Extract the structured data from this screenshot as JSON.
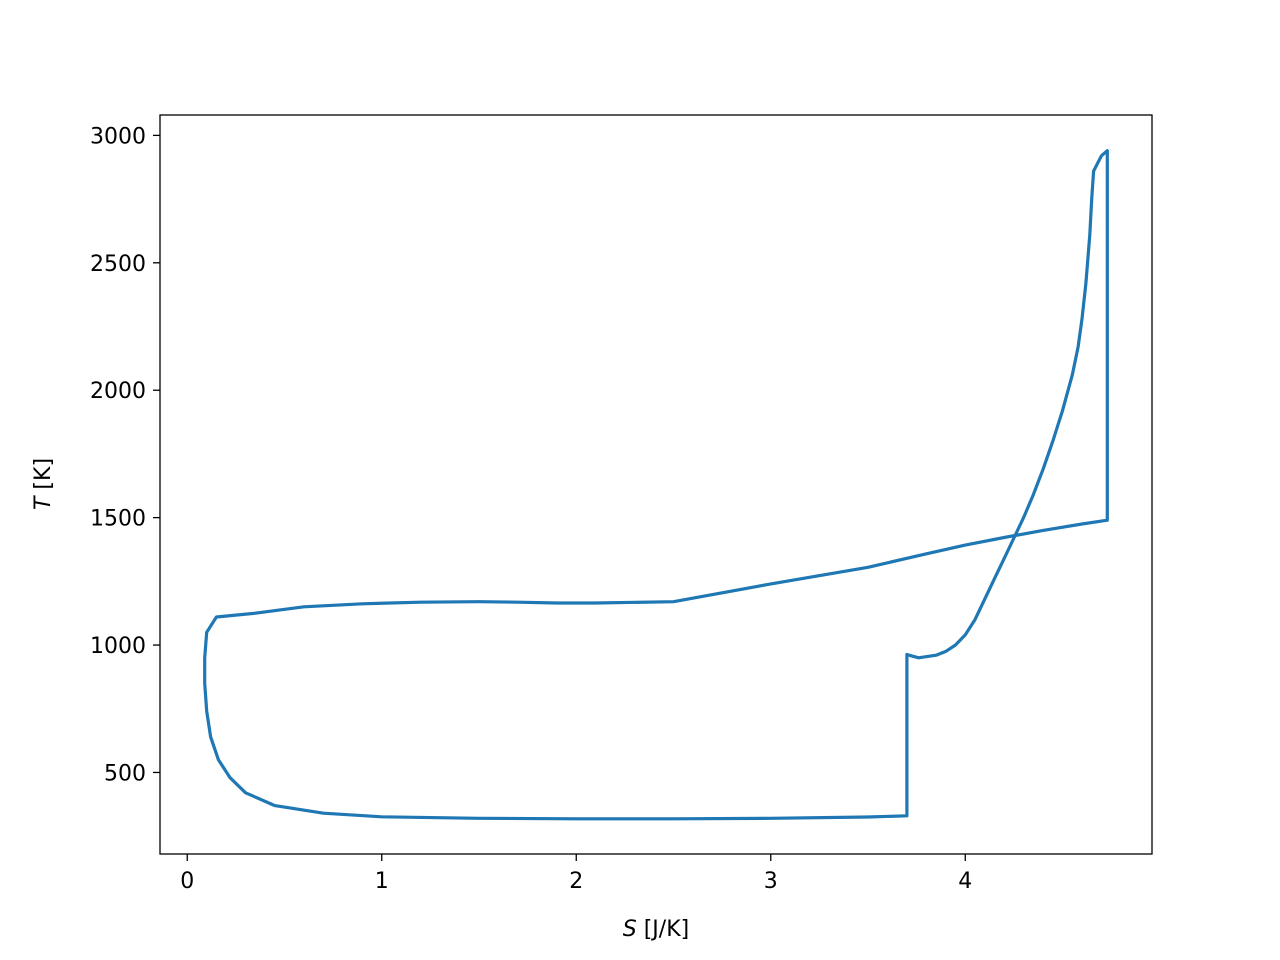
{
  "chart_data": {
    "type": "line",
    "title": "",
    "xlabel_var": "S",
    "xlabel_unit": " [J/K]",
    "ylabel_var": "T",
    "ylabel_unit": " [K]",
    "xlim": [
      -0.14,
      4.96
    ],
    "ylim": [
      180,
      3080
    ],
    "xticks": [
      0,
      1,
      2,
      3,
      4
    ],
    "yticks": [
      500,
      1000,
      1500,
      2000,
      2500,
      3000
    ],
    "grid": false,
    "line_color": "#1f77b4",
    "series": [
      {
        "x": [
          3.7,
          3.7,
          3.72,
          3.76,
          3.85,
          3.9,
          3.95,
          4.0,
          4.05,
          4.1,
          4.15,
          4.2,
          4.25,
          4.3,
          4.35,
          4.4,
          4.45,
          4.5,
          4.55,
          4.58,
          4.6,
          4.62,
          4.64,
          4.65,
          4.66,
          4.7,
          4.73,
          4.73,
          4.6,
          4.4,
          4.2,
          4.0,
          3.8,
          3.5,
          3.0,
          2.5,
          2.1,
          1.9,
          1.7,
          1.5,
          1.2,
          0.9,
          0.6,
          0.35,
          0.15,
          0.1,
          0.09,
          0.09,
          0.1,
          0.12,
          0.16,
          0.22,
          0.3,
          0.45,
          0.7,
          1.0,
          1.5,
          2.0,
          2.5,
          3.0,
          3.5,
          3.7,
          3.7
        ],
        "y": [
          330,
          963,
          958,
          950,
          960,
          975,
          1000,
          1040,
          1100,
          1180,
          1260,
          1340,
          1420,
          1500,
          1590,
          1690,
          1800,
          1920,
          2060,
          2170,
          2280,
          2420,
          2610,
          2750,
          2860,
          2920,
          2940,
          1490,
          1475,
          1450,
          1422,
          1392,
          1358,
          1305,
          1240,
          1170,
          1165,
          1165,
          1168,
          1170,
          1168,
          1162,
          1150,
          1125,
          1110,
          1050,
          950,
          850,
          740,
          640,
          550,
          480,
          420,
          370,
          340,
          326,
          320,
          318,
          318,
          320,
          325,
          330,
          330
        ]
      }
    ]
  }
}
